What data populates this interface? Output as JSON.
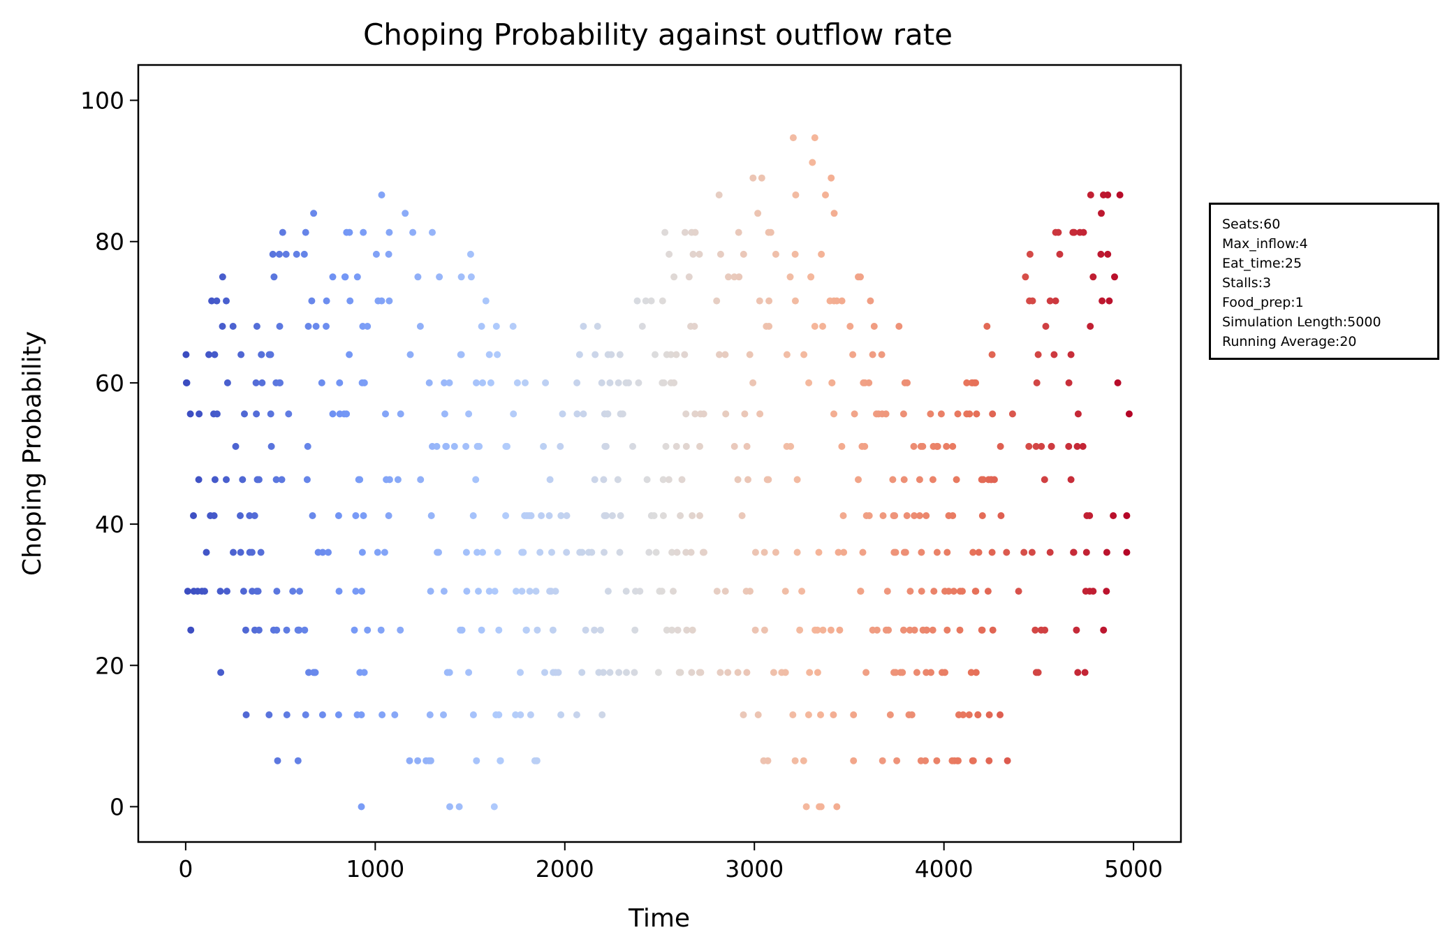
{
  "chart_data": {
    "type": "scatter",
    "title": "Choping Probability against outflow rate",
    "xlabel": "Time",
    "ylabel": "Choping Probability",
    "xlim": [
      -250,
      5250
    ],
    "ylim": [
      -5,
      105
    ],
    "xticks": [
      0,
      1000,
      2000,
      3000,
      4000,
      5000
    ],
    "yticks": [
      0,
      20,
      40,
      60,
      80,
      100
    ],
    "grid": false,
    "colormap": "coolwarm",
    "colormap_colors": [
      "#3b4cc0",
      "#7396f5",
      "#b0cbfc",
      "#dddcdc",
      "#f5b69a",
      "#e7735a",
      "#b40426"
    ],
    "levels": [
      0,
      6.5,
      13,
      19,
      25,
      30.5,
      36,
      41.2,
      46.3,
      51,
      55.6,
      60,
      64,
      68,
      71.6,
      75,
      78.2,
      81.3,
      84,
      86.6,
      89,
      91.2,
      93,
      94.7,
      97.3,
      100
    ],
    "x_range": [
      0,
      4980
    ],
    "annotation_lines": [
      "Seats:60",
      "Max_inflow:4",
      "Eat_time:25",
      "Stalls:3",
      "Food_prep:1",
      "Simulation Length:5000",
      "Running Average:20"
    ]
  }
}
